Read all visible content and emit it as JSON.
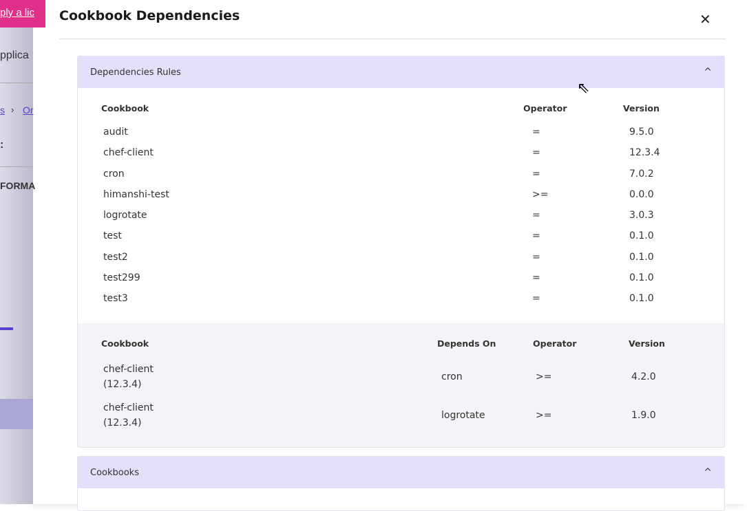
{
  "background": {
    "banner": "ply a lic",
    "app": "pplica",
    "breadcrumb_a": "s",
    "breadcrumb_b": "Or",
    "heading": ":",
    "section": "FORMA"
  },
  "modal": {
    "title": "Cookbook Dependencies",
    "close_icon": "close-icon"
  },
  "dependencies_rules": {
    "title": "Dependencies Rules",
    "headers": {
      "cookbook": "Cookbook",
      "operator": "Operator",
      "version": "Version"
    },
    "rows": [
      {
        "cookbook": "audit",
        "operator": "=",
        "version": "9.5.0"
      },
      {
        "cookbook": "chef-client",
        "operator": "=",
        "version": "12.3.4"
      },
      {
        "cookbook": "cron",
        "operator": "=",
        "version": "7.0.2"
      },
      {
        "cookbook": "himanshi-test",
        "operator": ">=",
        "version": "0.0.0"
      },
      {
        "cookbook": "logrotate",
        "operator": "=",
        "version": "3.0.3"
      },
      {
        "cookbook": "test",
        "operator": "=",
        "version": "0.1.0"
      },
      {
        "cookbook": "test2",
        "operator": "=",
        "version": "0.1.0"
      },
      {
        "cookbook": "test299",
        "operator": "=",
        "version": "0.1.0"
      },
      {
        "cookbook": "test3",
        "operator": "=",
        "version": "0.1.0"
      }
    ],
    "depends_headers": {
      "cookbook": "Cookbook",
      "depends_on": "Depends On",
      "operator": "Operator",
      "version": "Version"
    },
    "depends_rows": [
      {
        "cookbook": "chef-client",
        "cookbook_version": "(12.3.4)",
        "depends_on": "cron",
        "operator": ">=",
        "version": "4.2.0"
      },
      {
        "cookbook": "chef-client",
        "cookbook_version": "(12.3.4)",
        "depends_on": "logrotate",
        "operator": ">=",
        "version": "1.9.0"
      }
    ]
  },
  "cookbooks": {
    "title": "Cookbooks"
  }
}
